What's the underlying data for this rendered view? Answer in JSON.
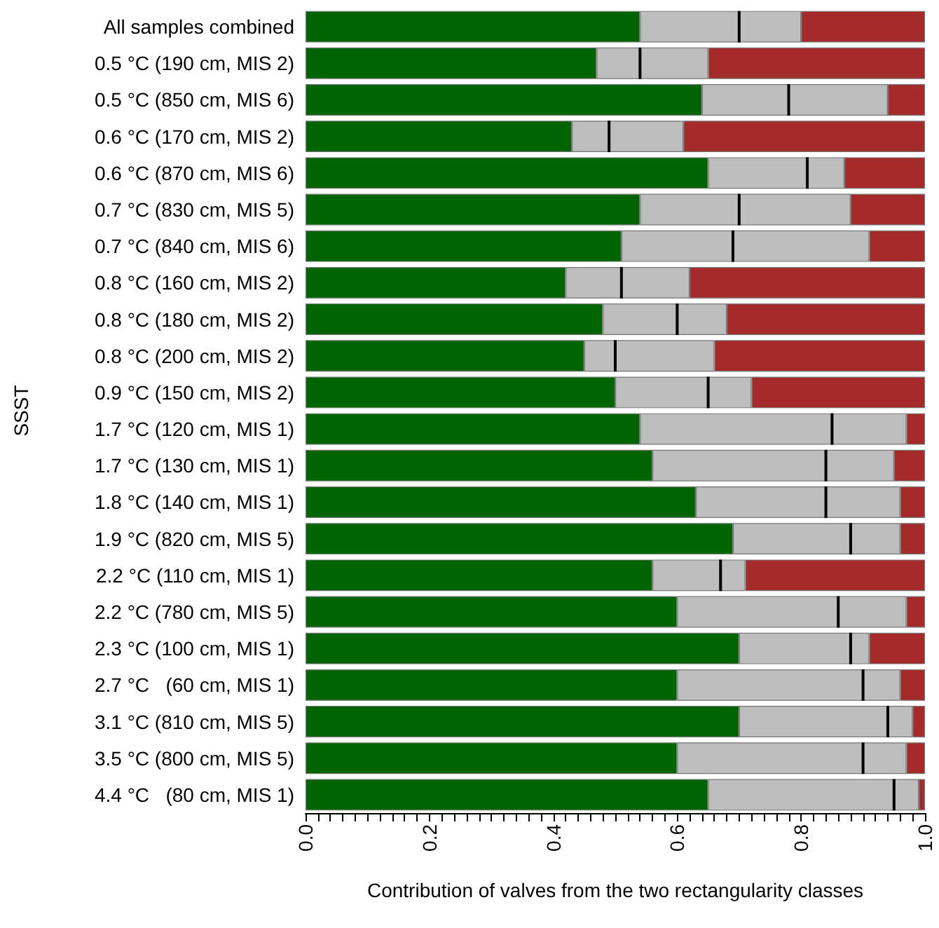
{
  "chart_data": {
    "type": "bar",
    "orientation": "horizontal",
    "stacked": true,
    "xlabel": "Contribution of valves from the two rectangularity classes",
    "ylabel": "SSST",
    "categories": [
      "All samples combined",
      "0.5 °C (190 cm, MIS 2)",
      "0.5 °C (850 cm, MIS 6)",
      "0.6 °C (170 cm, MIS 2)",
      "0.6 °C (870 cm, MIS 6)",
      "0.7 °C (830 cm, MIS 5)",
      "0.7 °C (840 cm, MIS 6)",
      "0.8 °C (160 cm, MIS 2)",
      "0.8 °C (180 cm, MIS 2)",
      "0.8 °C (200 cm, MIS 2)",
      "0.9 °C (150 cm, MIS 2)",
      "1.7 °C (120 cm, MIS 1)",
      "1.7 °C (130 cm, MIS 1)",
      "1.8 °C (140 cm, MIS 1)",
      "1.9 °C (820 cm, MIS 5)",
      "2.2 °C (110 cm, MIS 1)",
      "2.2 °C (780 cm, MIS 5)",
      "2.3 °C (100 cm, MIS 1)",
      "2.7 °C   (60 cm, MIS 1)",
      "3.1 °C (810 cm, MIS 5)",
      "3.5 °C (800 cm, MIS 5)",
      "4.4 °C   (80 cm, MIS 1)"
    ],
    "series": [
      {
        "color": "#006400",
        "values": [
          0.54,
          0.47,
          0.64,
          0.43,
          0.65,
          0.54,
          0.51,
          0.42,
          0.48,
          0.45,
          0.5,
          0.54,
          0.56,
          0.63,
          0.69,
          0.56,
          0.6,
          0.7,
          0.6,
          0.7,
          0.6,
          0.65
        ]
      },
      {
        "color": "#bebebe",
        "values": [
          0.16,
          0.07,
          0.14,
          0.06,
          0.16,
          0.16,
          0.18,
          0.09,
          0.12,
          0.05,
          0.15,
          0.31,
          0.28,
          0.21,
          0.19,
          0.11,
          0.26,
          0.18,
          0.3,
          0.24,
          0.3,
          0.3
        ]
      },
      {
        "color": "#bebebe",
        "values": [
          0.1,
          0.11,
          0.16,
          0.12,
          0.06,
          0.18,
          0.22,
          0.11,
          0.08,
          0.16,
          0.07,
          0.12,
          0.11,
          0.12,
          0.08,
          0.04,
          0.11,
          0.03,
          0.06,
          0.04,
          0.07,
          0.04
        ]
      },
      {
        "color": "#a52a2a",
        "values": [
          0.2,
          0.35,
          0.06,
          0.39,
          0.13,
          0.12,
          0.09,
          0.38,
          0.32,
          0.34,
          0.28,
          0.03,
          0.05,
          0.04,
          0.04,
          0.29,
          0.03,
          0.09,
          0.04,
          0.02,
          0.03,
          0.01
        ]
      }
    ],
    "xlim": [
      0,
      1
    ],
    "xticks": [
      {
        "value": 0,
        "label": "0.0"
      },
      {
        "value": 0.02,
        "label": null
      },
      {
        "value": 0.04,
        "label": null
      },
      {
        "value": 0.06,
        "label": null
      },
      {
        "value": 0.08,
        "label": null
      },
      {
        "value": 0.1,
        "label": null
      },
      {
        "value": 0.12,
        "label": null
      },
      {
        "value": 0.14,
        "label": null
      },
      {
        "value": 0.16,
        "label": null
      },
      {
        "value": 0.18,
        "label": null
      },
      {
        "value": 0.2,
        "label": "0.2"
      },
      {
        "value": 0.22,
        "label": null
      },
      {
        "value": 0.24,
        "label": null
      },
      {
        "value": 0.26,
        "label": null
      },
      {
        "value": 0.28,
        "label": null
      },
      {
        "value": 0.3,
        "label": null
      },
      {
        "value": 0.32,
        "label": null
      },
      {
        "value": 0.34,
        "label": null
      },
      {
        "value": 0.36,
        "label": null
      },
      {
        "value": 0.38,
        "label": null
      },
      {
        "value": 0.4,
        "label": "0.4"
      },
      {
        "value": 0.42,
        "label": null
      },
      {
        "value": 0.44,
        "label": null
      },
      {
        "value": 0.46,
        "label": null
      },
      {
        "value": 0.48,
        "label": null
      },
      {
        "value": 0.5,
        "label": null
      },
      {
        "value": 0.52,
        "label": null
      },
      {
        "value": 0.54,
        "label": null
      },
      {
        "value": 0.56,
        "label": null
      },
      {
        "value": 0.58,
        "label": null
      },
      {
        "value": 0.6,
        "label": "0.6"
      },
      {
        "value": 0.62,
        "label": null
      },
      {
        "value": 0.64,
        "label": null
      },
      {
        "value": 0.66,
        "label": null
      },
      {
        "value": 0.68,
        "label": null
      },
      {
        "value": 0.7,
        "label": null
      },
      {
        "value": 0.72,
        "label": null
      },
      {
        "value": 0.74,
        "label": null
      },
      {
        "value": 0.76,
        "label": null
      },
      {
        "value": 0.78,
        "label": null
      },
      {
        "value": 0.8,
        "label": "0.8"
      },
      {
        "value": 0.82,
        "label": null
      },
      {
        "value": 0.84,
        "label": null
      },
      {
        "value": 0.86,
        "label": null
      },
      {
        "value": 0.88,
        "label": null
      },
      {
        "value": 0.9,
        "label": null
      },
      {
        "value": 0.92,
        "label": null
      },
      {
        "value": 0.94,
        "label": null
      },
      {
        "value": 0.96,
        "label": null
      },
      {
        "value": 0.98,
        "label": null
      },
      {
        "value": 1,
        "label": "1.0"
      }
    ],
    "grid": false
  }
}
